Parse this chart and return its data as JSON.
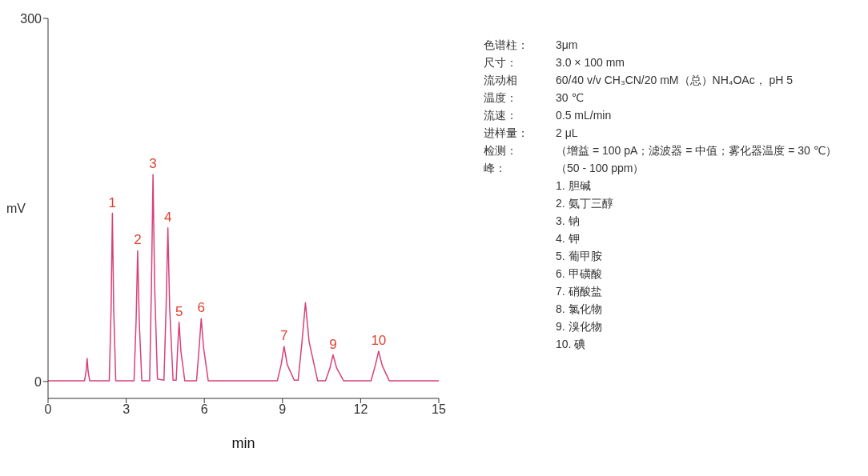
{
  "chart_data": {
    "type": "line",
    "xlabel": "min",
    "ylabel": "mV",
    "x": [
      0,
      1.4,
      1.46,
      1.5,
      1.54,
      1.6,
      2.35,
      2.42,
      2.47,
      2.52,
      2.6,
      3.3,
      3.38,
      3.44,
      3.5,
      3.6,
      3.9,
      3.97,
      4.03,
      4.09,
      4.2,
      4.45,
      4.53,
      4.6,
      4.67,
      4.8,
      4.92,
      4.97,
      5.03,
      5.1,
      5.25,
      5.7,
      5.8,
      5.88,
      5.97,
      6.15,
      8.8,
      8.95,
      9.06,
      9.18,
      9.45,
      9.6,
      9.75,
      9.88,
      10.02,
      10.35,
      10.65,
      10.82,
      10.94,
      11.08,
      11.35,
      12.4,
      12.56,
      12.69,
      12.83,
      13.1,
      15
    ],
    "series": [
      {
        "color": "#d9407a",
        "values": [
          0.5,
          0.5,
          8,
          19,
          8,
          0.5,
          0.5,
          60,
          139,
          60,
          0.5,
          0.5,
          50,
          108,
          50,
          0.5,
          0.5,
          80,
          171,
          80,
          2,
          1,
          60,
          127,
          60,
          1,
          1,
          25,
          49,
          25,
          0.5,
          0.5,
          28,
          52,
          28,
          0.5,
          0.5,
          14,
          29,
          14,
          1,
          1,
          33,
          65,
          33,
          0.5,
          0.5,
          11,
          22,
          11,
          0.5,
          0.5,
          13,
          25,
          13,
          0.5,
          0.5
        ]
      }
    ],
    "xlim": [
      0,
      15
    ],
    "xticks": [
      0,
      3,
      6,
      9,
      12,
      15
    ],
    "ylim": [
      -14,
      300
    ],
    "yticks": [
      0,
      300
    ],
    "grid": false,
    "legend": false,
    "marker": "none",
    "line_style": "solid",
    "annotations": [
      {
        "text": "1",
        "x": 2.47,
        "y": 139
      },
      {
        "text": "2",
        "x": 3.44,
        "y": 108
      },
      {
        "text": "3",
        "x": 4.03,
        "y": 171
      },
      {
        "text": "4",
        "x": 4.6,
        "y": 127
      },
      {
        "text": "5",
        "x": 5.03,
        "y": 49
      },
      {
        "text": "6",
        "x": 5.88,
        "y": 52
      },
      {
        "text": "7",
        "x": 9.06,
        "y": 29
      },
      {
        "text": "9",
        "x": 10.94,
        "y": 22
      },
      {
        "text": "10",
        "x": 12.69,
        "y": 25
      },
      "色谱柱：\t3μm",
      "尺寸：\t3.0 × 100 mm",
      "流动相\t60/40 v/v CH₃CN/20 mM（总）NH₄OAc， pH 5",
      "温度：\t30 ℃",
      "流速：\t0.5 mL/min",
      "进样量：\t2 μL",
      "检测：\t（增益 = 100 pA；滤波器 = 中值；雾化器温度 = 30 ℃）",
      "峰：\t（50 - 100 ppm）",
      "\t1. 胆碱",
      "\t2. 氨丁三醇",
      "\t3. 钠",
      "\t4. 钾",
      "\t5. 葡甲胺",
      "\t6. 甲磺酸",
      "\t7. 硝酸盐",
      "\t8. 氯化物",
      "\t9. 溴化物",
      "\t10. 碘"
    ]
  }
}
